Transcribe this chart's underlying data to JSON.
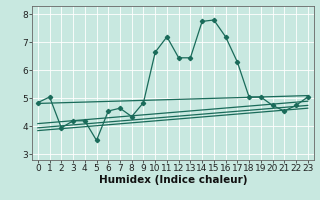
{
  "xlabel": "Humidex (Indice chaleur)",
  "ylabel": "",
  "xlim": [
    -0.5,
    23.5
  ],
  "ylim": [
    2.8,
    8.3
  ],
  "yticks": [
    3,
    4,
    5,
    6,
    7,
    8
  ],
  "xticks": [
    0,
    1,
    2,
    3,
    4,
    5,
    6,
    7,
    8,
    9,
    10,
    11,
    12,
    13,
    14,
    15,
    16,
    17,
    18,
    19,
    20,
    21,
    22,
    23
  ],
  "bg_color": "#c8e8e0",
  "grid_color": "#b0d8d0",
  "line_color": "#1a6b5a",
  "line1_x": [
    0,
    1,
    2,
    3,
    4,
    5,
    6,
    7,
    8,
    9,
    10,
    11,
    12,
    13,
    14,
    15,
    16,
    17,
    18,
    19,
    20,
    21,
    22,
    23
  ],
  "line1_y": [
    4.85,
    5.05,
    3.95,
    4.2,
    4.2,
    3.5,
    4.55,
    4.65,
    4.35,
    4.85,
    6.65,
    7.2,
    6.45,
    6.45,
    7.75,
    7.8,
    7.2,
    6.3,
    5.05,
    5.05,
    4.75,
    4.55,
    4.75,
    5.05
  ],
  "line2_x": [
    0,
    23
  ],
  "line2_y": [
    4.82,
    5.1
  ],
  "line3_x": [
    0,
    23
  ],
  "line3_y": [
    4.1,
    4.9
  ],
  "line4_x": [
    0,
    23
  ],
  "line4_y": [
    3.95,
    4.75
  ],
  "line5_x": [
    0,
    23
  ],
  "line5_y": [
    3.85,
    4.65
  ],
  "tick_fontsize": 6.5,
  "label_fontsize": 7.5
}
